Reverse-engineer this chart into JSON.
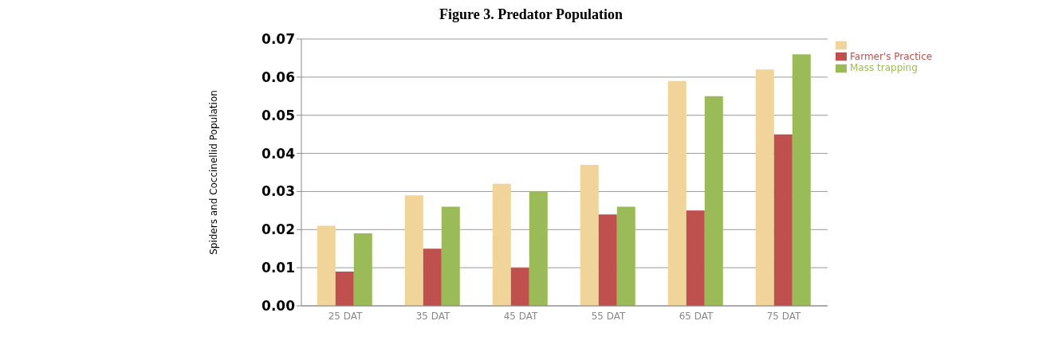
{
  "chart_data": {
    "type": "bar",
    "title": "Figure 3. Predator Population",
    "ylabel": "Spiders and Coccinellid Population",
    "categories": [
      "25 DAT",
      "35 DAT",
      "45 DAT",
      "55 DAT",
      "65 DAT",
      "75 DAT"
    ],
    "series": [
      {
        "color": "#f0d49a",
        "values": [
          0.021,
          0.029,
          0.032,
          0.037,
          0.059,
          0.062
        ]
      },
      {
        "name": "Farmer's Practice",
        "color": "#c0504d",
        "values": [
          0.009,
          0.015,
          0.01,
          0.024,
          0.025,
          0.045
        ]
      },
      {
        "name": "Mass trapping",
        "color": "#9bbb59",
        "values": [
          0.019,
          0.026,
          0.03,
          0.026,
          0.055,
          0.066
        ]
      }
    ],
    "ylim": [
      0,
      0.07
    ],
    "yticks": [
      {
        "value": 0,
        "label": "0.00"
      },
      {
        "value": 0.01,
        "label": "0.01"
      },
      {
        "value": 0.02,
        "label": "0.02"
      },
      {
        "value": 0.03,
        "label": "0.03"
      },
      {
        "value": 0.04,
        "label": "0.04"
      },
      {
        "value": 0.05,
        "label": "0.05"
      },
      {
        "value": 0.06,
        "label": "0.06"
      },
      {
        "value": 0.07,
        "label": "0.07"
      }
    ],
    "grid": "y",
    "legend": "top right"
  }
}
